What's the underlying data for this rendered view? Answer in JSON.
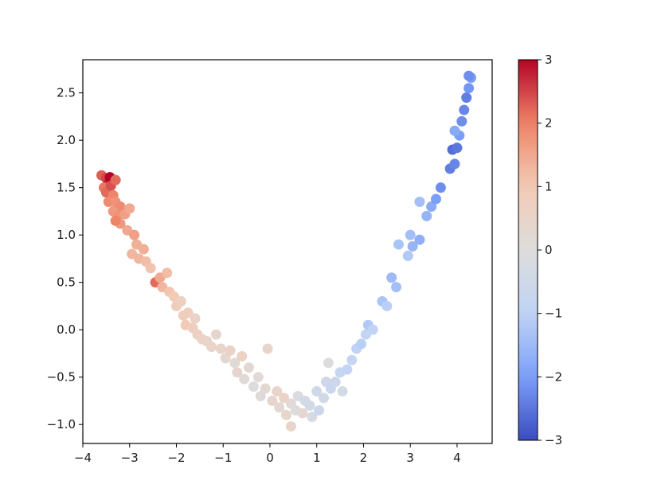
{
  "chart_data": {
    "type": "scatter",
    "title": "",
    "xlabel": "",
    "ylabel": "",
    "xlim": [
      -4,
      4.75
    ],
    "ylim": [
      -1.2,
      2.85
    ],
    "xticks": [
      -4,
      -3,
      -2,
      -1,
      0,
      1,
      2,
      3,
      4
    ],
    "xtick_labels": [
      "−4",
      "−3",
      "−2",
      "−1",
      "0",
      "1",
      "2",
      "3",
      "4"
    ],
    "yticks": [
      -1.0,
      -0.5,
      0.0,
      0.5,
      1.0,
      1.5,
      2.0,
      2.5
    ],
    "ytick_labels": [
      "−1.0",
      "−0.5",
      "0.0",
      "0.5",
      "1.0",
      "1.5",
      "2.0",
      "2.5"
    ],
    "grid": false,
    "colormap": "coolwarm",
    "colorbar": {
      "range": [
        -3,
        3
      ],
      "ticks": [
        -3,
        -2,
        -1,
        0,
        1,
        2,
        3
      ],
      "tick_labels": [
        "−3",
        "−2",
        "−1",
        "0",
        "1",
        "2",
        "3"
      ],
      "colors": [
        "#3b4cc0",
        "#7b9ff9",
        "#c0d4f5",
        "#dddcdc",
        "#f2cbb7",
        "#ee8468",
        "#b40426"
      ]
    },
    "points": [
      {
        "x": -3.6,
        "y": 1.63,
        "c": 2.3
      },
      {
        "x": -3.5,
        "y": 1.6,
        "c": 2.5
      },
      {
        "x": -3.45,
        "y": 1.55,
        "c": 2.8
      },
      {
        "x": -3.42,
        "y": 1.61,
        "c": 3.0
      },
      {
        "x": -3.55,
        "y": 1.5,
        "c": 2.1
      },
      {
        "x": -3.5,
        "y": 1.45,
        "c": 2.2
      },
      {
        "x": -3.4,
        "y": 1.52,
        "c": 2.4
      },
      {
        "x": -3.3,
        "y": 1.58,
        "c": 2.2
      },
      {
        "x": -3.35,
        "y": 1.42,
        "c": 2.0
      },
      {
        "x": -3.45,
        "y": 1.35,
        "c": 1.9
      },
      {
        "x": -3.3,
        "y": 1.35,
        "c": 1.8
      },
      {
        "x": -3.2,
        "y": 1.3,
        "c": 1.9
      },
      {
        "x": -3.35,
        "y": 1.25,
        "c": 1.7
      },
      {
        "x": -3.25,
        "y": 1.2,
        "c": 1.8
      },
      {
        "x": -3.1,
        "y": 1.22,
        "c": 1.6
      },
      {
        "x": -3.2,
        "y": 1.12,
        "c": 1.7
      },
      {
        "x": -3.3,
        "y": 1.15,
        "c": 2.0
      },
      {
        "x": -3.0,
        "y": 1.28,
        "c": 1.5
      },
      {
        "x": -3.05,
        "y": 1.05,
        "c": 1.5
      },
      {
        "x": -2.9,
        "y": 1.0,
        "c": 1.6
      },
      {
        "x": -2.85,
        "y": 0.9,
        "c": 1.4
      },
      {
        "x": -2.95,
        "y": 0.8,
        "c": 1.3
      },
      {
        "x": -2.8,
        "y": 0.75,
        "c": 1.3
      },
      {
        "x": -2.65,
        "y": 0.72,
        "c": 1.2
      },
      {
        "x": -2.7,
        "y": 0.85,
        "c": 1.4
      },
      {
        "x": -2.55,
        "y": 0.65,
        "c": 1.1
      },
      {
        "x": -2.45,
        "y": 0.5,
        "c": 2.2
      },
      {
        "x": -2.35,
        "y": 0.55,
        "c": 1.5
      },
      {
        "x": -2.3,
        "y": 0.45,
        "c": 1.3
      },
      {
        "x": -2.2,
        "y": 0.6,
        "c": 1.2
      },
      {
        "x": -2.15,
        "y": 0.4,
        "c": 1.1
      },
      {
        "x": -2.05,
        "y": 0.35,
        "c": 1.0
      },
      {
        "x": -2.0,
        "y": 0.25,
        "c": 0.9
      },
      {
        "x": -1.9,
        "y": 0.3,
        "c": 0.7
      },
      {
        "x": -1.85,
        "y": 0.15,
        "c": 0.9
      },
      {
        "x": -1.75,
        "y": 0.18,
        "c": 0.8
      },
      {
        "x": -1.8,
        "y": 0.05,
        "c": 1.0
      },
      {
        "x": -1.65,
        "y": 0.02,
        "c": 0.8
      },
      {
        "x": -1.6,
        "y": 0.12,
        "c": 0.6
      },
      {
        "x": -1.55,
        "y": -0.05,
        "c": 0.7
      },
      {
        "x": -1.45,
        "y": -0.1,
        "c": 0.6
      },
      {
        "x": -1.35,
        "y": -0.12,
        "c": 0.5
      },
      {
        "x": -1.25,
        "y": -0.18,
        "c": 0.5
      },
      {
        "x": -1.15,
        "y": -0.05,
        "c": 0.4
      },
      {
        "x": -1.05,
        "y": -0.2,
        "c": 0.5
      },
      {
        "x": -0.95,
        "y": -0.3,
        "c": 0.3
      },
      {
        "x": -0.85,
        "y": -0.22,
        "c": 0.6
      },
      {
        "x": -0.75,
        "y": -0.35,
        "c": 0.2
      },
      {
        "x": -0.7,
        "y": -0.45,
        "c": 0.4
      },
      {
        "x": -0.6,
        "y": -0.28,
        "c": 0.7
      },
      {
        "x": -0.55,
        "y": -0.52,
        "c": 0.1
      },
      {
        "x": -0.45,
        "y": -0.4,
        "c": 0.3
      },
      {
        "x": -0.35,
        "y": -0.6,
        "c": 0.0
      },
      {
        "x": -0.25,
        "y": -0.5,
        "c": 0.2
      },
      {
        "x": -0.2,
        "y": -0.7,
        "c": 0.1
      },
      {
        "x": -0.1,
        "y": -0.62,
        "c": 0.3
      },
      {
        "x": -0.05,
        "y": -0.2,
        "c": 0.5
      },
      {
        "x": 0.05,
        "y": -0.75,
        "c": 0.4
      },
      {
        "x": 0.15,
        "y": -0.65,
        "c": 0.5
      },
      {
        "x": 0.2,
        "y": -0.82,
        "c": 0.3
      },
      {
        "x": 0.3,
        "y": -0.72,
        "c": 0.6
      },
      {
        "x": 0.35,
        "y": -0.9,
        "c": 0.4
      },
      {
        "x": 0.45,
        "y": -0.78,
        "c": 0.2
      },
      {
        "x": 0.55,
        "y": -0.85,
        "c": 0.0
      },
      {
        "x": 0.45,
        "y": -1.02,
        "c": 0.5
      },
      {
        "x": 0.6,
        "y": -0.7,
        "c": -0.1
      },
      {
        "x": 0.7,
        "y": -0.88,
        "c": 0.3
      },
      {
        "x": 0.75,
        "y": -0.75,
        "c": -0.3
      },
      {
        "x": 0.85,
        "y": -0.8,
        "c": -0.4
      },
      {
        "x": 0.9,
        "y": -0.92,
        "c": -0.2
      },
      {
        "x": 1.0,
        "y": -0.65,
        "c": -0.5
      },
      {
        "x": 1.05,
        "y": -0.85,
        "c": -0.6
      },
      {
        "x": 1.15,
        "y": -0.72,
        "c": -0.4
      },
      {
        "x": 1.2,
        "y": -0.55,
        "c": -0.5
      },
      {
        "x": 1.25,
        "y": -0.35,
        "c": 0.0
      },
      {
        "x": 1.3,
        "y": -0.62,
        "c": -0.7
      },
      {
        "x": 1.4,
        "y": -0.55,
        "c": -0.6
      },
      {
        "x": 1.5,
        "y": -0.45,
        "c": -0.8
      },
      {
        "x": 1.55,
        "y": -0.65,
        "c": -0.3
      },
      {
        "x": 1.65,
        "y": -0.42,
        "c": -0.9
      },
      {
        "x": 1.75,
        "y": -0.32,
        "c": -0.8
      },
      {
        "x": 1.85,
        "y": -0.2,
        "c": -1.0
      },
      {
        "x": 1.95,
        "y": -0.15,
        "c": -1.1
      },
      {
        "x": 2.05,
        "y": -0.05,
        "c": -0.9
      },
      {
        "x": 2.1,
        "y": 0.05,
        "c": -1.2
      },
      {
        "x": 2.2,
        "y": 0.0,
        "c": -1.0
      },
      {
        "x": 2.4,
        "y": 0.3,
        "c": -1.3
      },
      {
        "x": 2.5,
        "y": 0.25,
        "c": -1.1
      },
      {
        "x": 2.6,
        "y": 0.55,
        "c": -1.5
      },
      {
        "x": 2.7,
        "y": 0.45,
        "c": -1.4
      },
      {
        "x": 2.75,
        "y": 0.9,
        "c": -1.3
      },
      {
        "x": 2.95,
        "y": 0.78,
        "c": -1.2
      },
      {
        "x": 3.0,
        "y": 1.0,
        "c": -1.4
      },
      {
        "x": 3.05,
        "y": 0.88,
        "c": -1.6
      },
      {
        "x": 3.2,
        "y": 0.95,
        "c": -1.7
      },
      {
        "x": 3.2,
        "y": 1.35,
        "c": -1.4
      },
      {
        "x": 3.35,
        "y": 1.2,
        "c": -1.6
      },
      {
        "x": 3.45,
        "y": 1.3,
        "c": -1.8
      },
      {
        "x": 3.55,
        "y": 1.38,
        "c": -2.0
      },
      {
        "x": 3.65,
        "y": 1.5,
        "c": -2.2
      },
      {
        "x": 3.85,
        "y": 1.7,
        "c": -2.4
      },
      {
        "x": 3.95,
        "y": 1.75,
        "c": -2.3
      },
      {
        "x": 3.9,
        "y": 1.9,
        "c": -2.6
      },
      {
        "x": 4.0,
        "y": 1.92,
        "c": -2.5
      },
      {
        "x": 4.05,
        "y": 2.05,
        "c": -2.0
      },
      {
        "x": 3.95,
        "y": 2.1,
        "c": -1.8
      },
      {
        "x": 4.1,
        "y": 2.2,
        "c": -2.2
      },
      {
        "x": 4.15,
        "y": 2.32,
        "c": -2.3
      },
      {
        "x": 4.2,
        "y": 2.45,
        "c": -2.4
      },
      {
        "x": 4.25,
        "y": 2.55,
        "c": -2.1
      },
      {
        "x": 4.3,
        "y": 2.66,
        "c": -2.0
      },
      {
        "x": 4.25,
        "y": 2.68,
        "c": -2.2
      }
    ]
  }
}
